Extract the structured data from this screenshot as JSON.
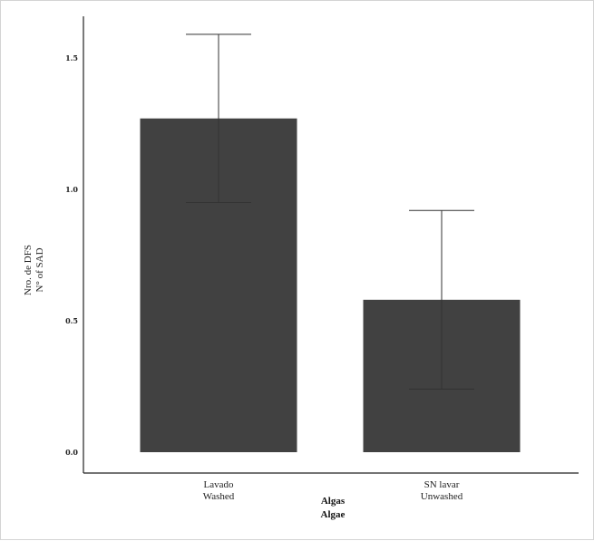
{
  "chart_data": {
    "type": "bar",
    "categories": [
      [
        "Lavado",
        "Washed"
      ],
      [
        "SN lavar",
        "Unwashed"
      ]
    ],
    "values": [
      1.27,
      0.58
    ],
    "error_bars": [
      {
        "low": 0.95,
        "high": 1.59
      },
      {
        "low": 0.24,
        "high": 0.92
      }
    ],
    "yticks": [
      "0.0",
      "0.5",
      "1.0",
      "1.5"
    ],
    "ylim": [
      0,
      1.7
    ],
    "xlabel": [
      "Algas",
      "Algae"
    ],
    "ylabel": [
      "Nro. de DFS",
      "N° of SAD"
    ],
    "grid": false,
    "colors": {
      "bar": "#414141",
      "axis": "#222222",
      "error": "#333333"
    }
  }
}
